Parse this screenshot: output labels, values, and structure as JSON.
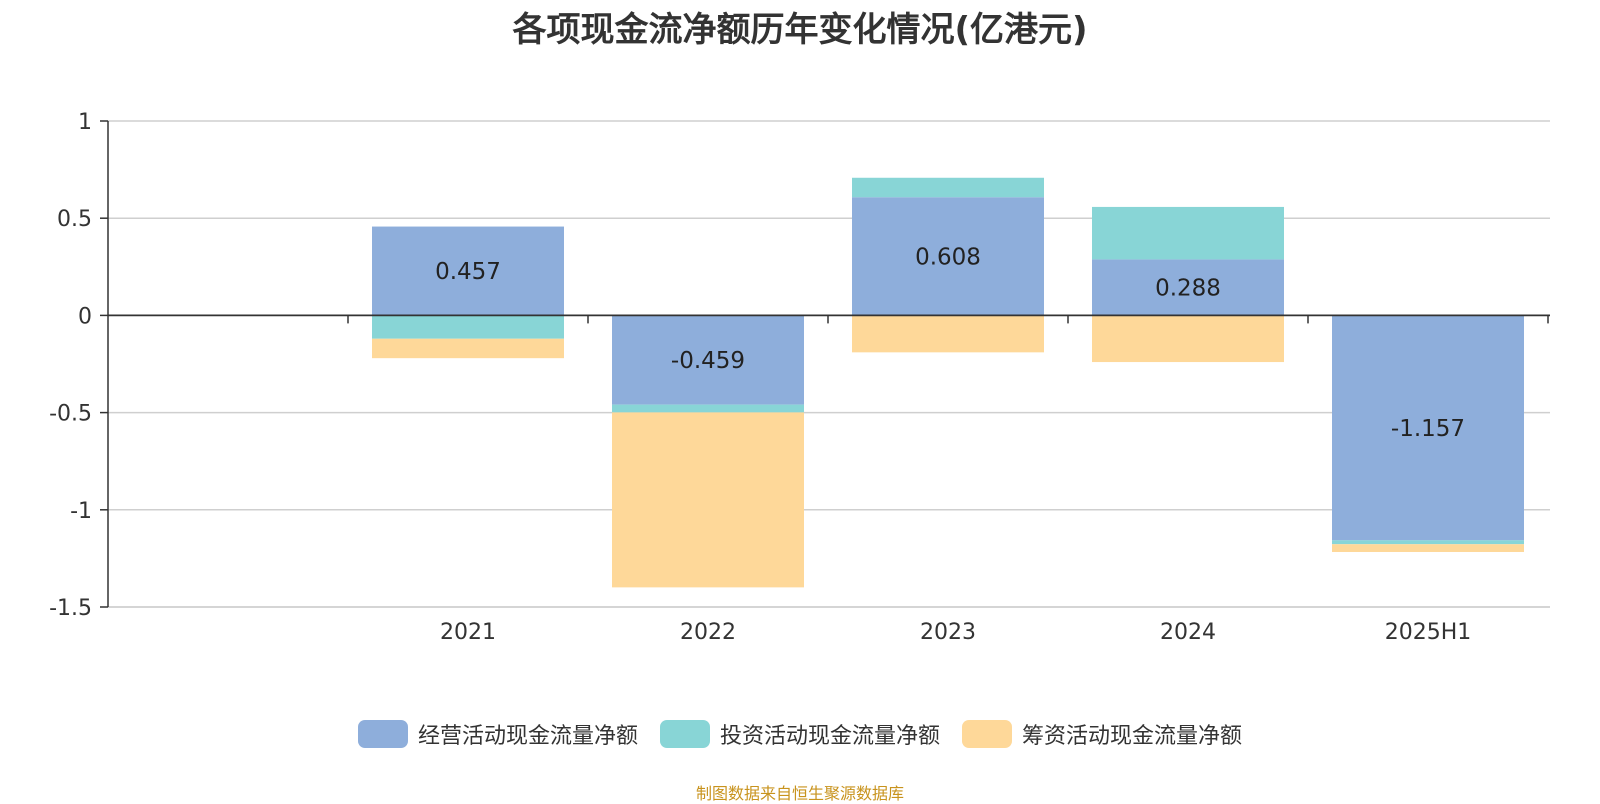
{
  "chart_data": {
    "type": "bar",
    "stacked": true,
    "title": "各项现金流净额历年变化情况(亿港元)",
    "categories": [
      "2021",
      "2022",
      "2023",
      "2024",
      "2025H1"
    ],
    "series": [
      {
        "name": "经营活动现金流量净额",
        "color": "#8eaedb",
        "values": [
          0.457,
          -0.459,
          0.608,
          0.288,
          -1.157
        ],
        "show_labels": true
      },
      {
        "name": "投资活动现金流量净额",
        "color": "#88d5d6",
        "values": [
          -0.12,
          -0.04,
          0.1,
          0.27,
          -0.02
        ],
        "show_labels": false
      },
      {
        "name": "筹资活动现金流量净额",
        "color": "#fed899",
        "values": [
          -0.1,
          -0.9,
          -0.19,
          -0.24,
          -0.04
        ],
        "show_labels": false
      }
    ],
    "y_ticks": [
      "1",
      "0.5",
      "0",
      "-0.5",
      "-1",
      "-1.5"
    ],
    "ylim": [
      -1.5,
      1
    ],
    "grid": true,
    "legend_position": "bottom"
  },
  "source_note": "制图数据来自恒生聚源数据库"
}
